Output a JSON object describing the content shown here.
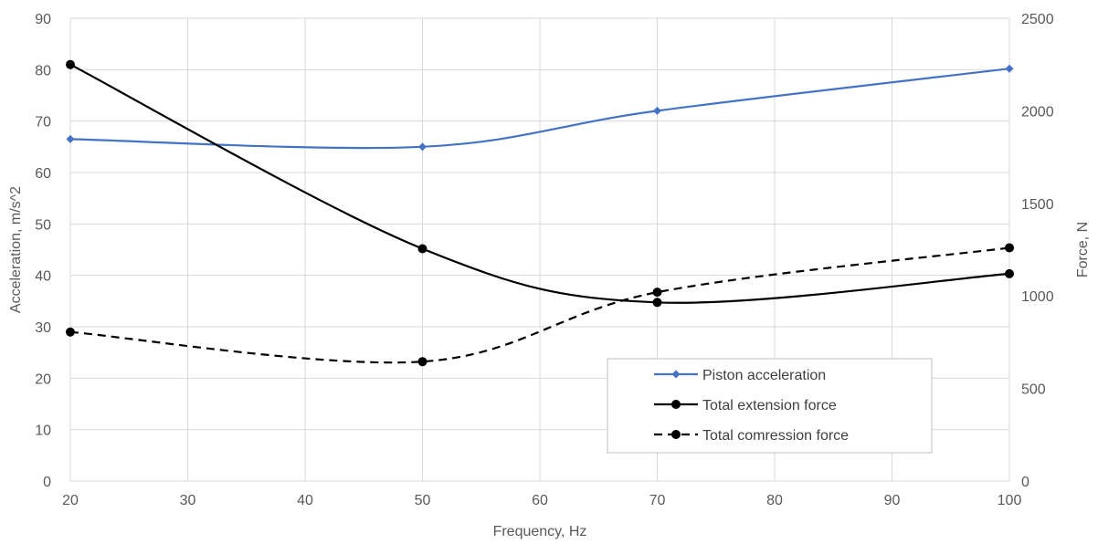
{
  "chart_data": {
    "type": "line",
    "x": [
      20,
      50,
      70,
      100
    ],
    "xlabel": "Frequency, Hz",
    "ylabel_left": "Acceleration, m/s^2",
    "ylabel_right": "Force, N",
    "xlim": [
      20,
      100
    ],
    "ylim_left": [
      0,
      90
    ],
    "ylim_right": [
      0,
      2500
    ],
    "x_ticks": [
      "20",
      "30",
      "40",
      "50",
      "60",
      "70",
      "80",
      "90",
      "100"
    ],
    "y_left_ticks": [
      "0",
      "10",
      "20",
      "30",
      "40",
      "50",
      "60",
      "70",
      "80",
      "90"
    ],
    "y_right_ticks": [
      "0",
      "500",
      "1000",
      "1500",
      "2000",
      "2500"
    ],
    "grid": true,
    "legend_position": "bottom-right",
    "series": [
      {
        "name": "Piston acceleration",
        "axis": "left",
        "values": [
          66.5,
          65.0,
          72.0,
          80.2
        ],
        "color": "#4472c4",
        "marker": "diamond",
        "dash": "solid"
      },
      {
        "name": "Total extension force",
        "axis": "right",
        "values": [
          2250,
          1255,
          965,
          1120
        ],
        "color": "#000000",
        "marker": "circle",
        "dash": "solid"
      },
      {
        "name": "Total comression force",
        "axis": "right",
        "values": [
          805,
          645,
          1020,
          1260
        ],
        "color": "#000000",
        "marker": "circle",
        "dash": "dashed"
      }
    ]
  }
}
